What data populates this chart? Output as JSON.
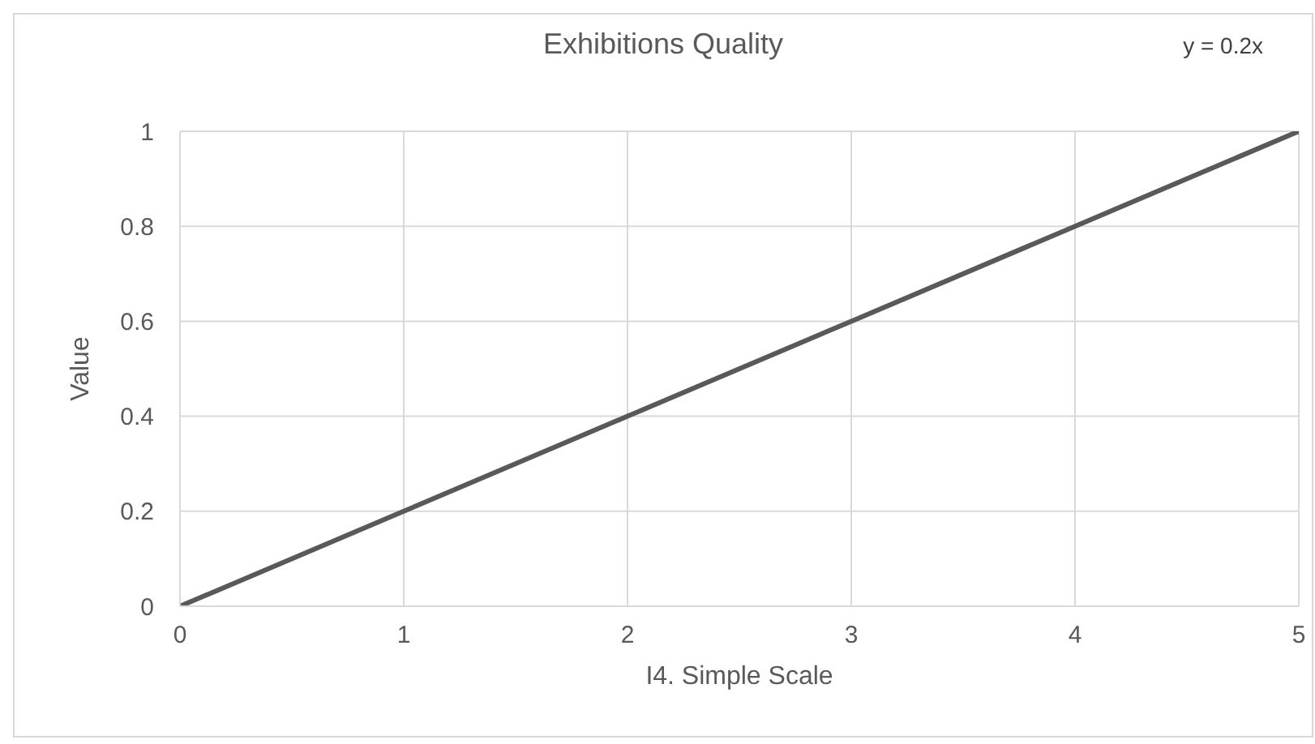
{
  "chart_data": {
    "type": "line",
    "title": "Exhibitions Quality",
    "xlabel": "I4. Simple Scale",
    "ylabel": "Value",
    "annotations": [
      "y = 0.2x"
    ],
    "x": [
      0,
      1,
      2,
      3,
      4,
      5
    ],
    "series": [
      {
        "color": "#595959",
        "values": [
          0,
          0.2,
          0.4,
          0.6,
          0.8,
          1
        ]
      }
    ],
    "xlim": [
      0,
      5
    ],
    "xticks": [
      0,
      1,
      2,
      3,
      4,
      5
    ],
    "ylim": [
      0,
      1
    ],
    "yticks": [
      0,
      0.2,
      0.4,
      0.6,
      0.8,
      1
    ],
    "grid": true,
    "legend": false,
    "marker": "none",
    "line_style": "solid"
  }
}
